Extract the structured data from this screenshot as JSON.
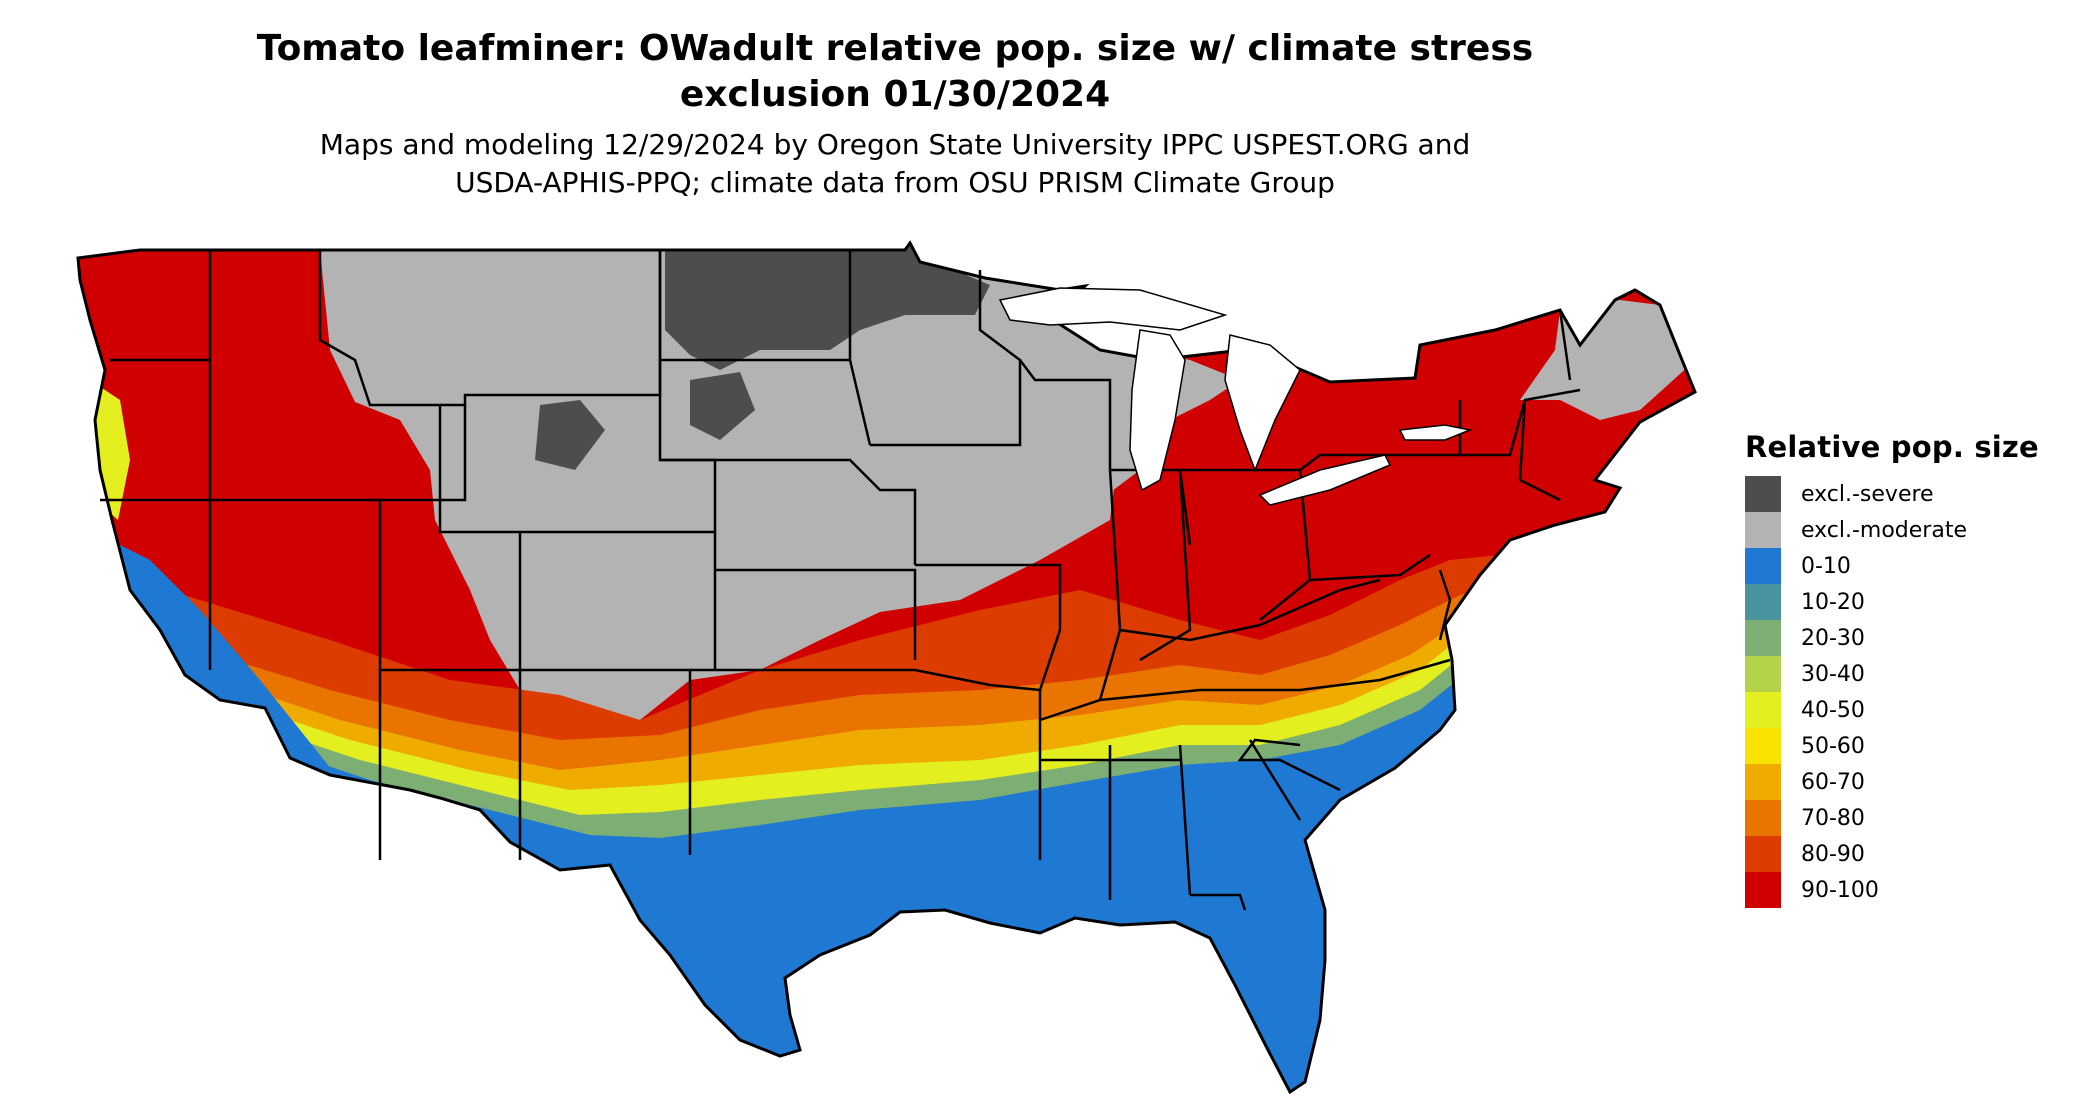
{
  "title": {
    "line1": "Tomato leafminer: OWadult relative pop. size w/ climate stress",
    "line2": "exclusion 01/30/2024"
  },
  "subtitle": {
    "line1": "Maps and modeling 12/29/2024 by Oregon State University IPPC USPEST.ORG and",
    "line2": "USDA-APHIS-PPQ; climate data from OSU PRISM Climate Group"
  },
  "legend": {
    "title": "Relative pop. size",
    "items": [
      {
        "label": "excl.-severe",
        "color": "#4d4d4d"
      },
      {
        "label": "excl.-moderate",
        "color": "#b3b3b3"
      },
      {
        "label": "0-10",
        "color": "#1f78d1"
      },
      {
        "label": "10-20",
        "color": "#4a94a0"
      },
      {
        "label": "20-30",
        "color": "#7dae73"
      },
      {
        "label": "30-40",
        "color": "#b5d34a"
      },
      {
        "label": "40-50",
        "color": "#e3ef1f"
      },
      {
        "label": "50-60",
        "color": "#f7e200"
      },
      {
        "label": "60-70",
        "color": "#f0ab00"
      },
      {
        "label": "70-80",
        "color": "#ea7400"
      },
      {
        "label": "80-90",
        "color": "#dc3c00"
      },
      {
        "label": "90-100",
        "color": "#d00000"
      }
    ]
  }
}
